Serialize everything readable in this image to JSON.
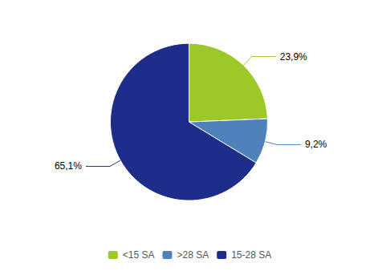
{
  "chart_data": {
    "type": "pie",
    "categories": [
      "<15 SA",
      ">28 SA",
      "15-28 SA"
    ],
    "values": [
      23.9,
      9.2,
      65.1
    ],
    "value_labels": [
      "23,9%",
      "9,2%",
      "65,1%"
    ],
    "colors": [
      "#9dc928",
      "#4f81bd",
      "#1f2d8a"
    ],
    "data_labels": true,
    "legend": "bottom"
  }
}
